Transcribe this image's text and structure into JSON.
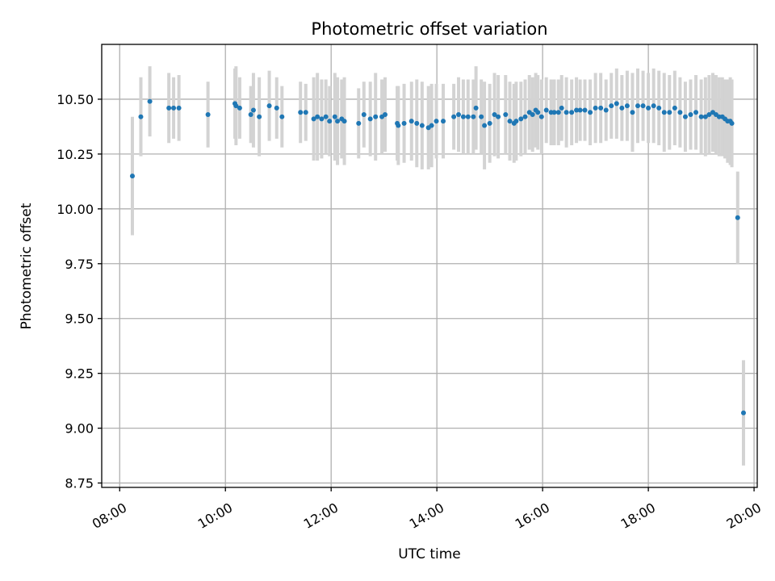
{
  "chart_data": {
    "type": "scatter",
    "title": "Photometric offset variation",
    "xlabel": "UTC time",
    "ylabel": "Photometric offset",
    "x_tick_labels": [
      "08:00",
      "10:00",
      "12:00",
      "14:00",
      "16:00",
      "18:00",
      "20:00"
    ],
    "x_tick_hours": [
      8,
      10,
      12,
      14,
      16,
      18,
      20
    ],
    "y_tick_labels": [
      "8.75",
      "9.00",
      "9.25",
      "9.50",
      "9.75",
      "10.00",
      "10.25",
      "10.50"
    ],
    "y_tick_values": [
      8.75,
      9.0,
      9.25,
      9.5,
      9.75,
      10.0,
      10.25,
      10.5
    ],
    "xlim_hours": [
      7.66,
      20.06
    ],
    "ylim": [
      8.73,
      10.75
    ],
    "grid": true,
    "colors": {
      "point": "#1f77b4",
      "errorbar": "#d3d3d3"
    },
    "series": [
      {
        "x_hours": [
          8.24,
          8.4,
          8.57,
          8.93,
          9.02,
          9.12,
          9.67,
          10.18,
          10.2,
          10.27,
          10.48,
          10.53,
          10.64,
          10.83,
          10.97,
          11.07,
          11.42,
          11.52,
          11.67,
          11.74,
          11.82,
          11.9,
          11.97,
          12.07,
          12.12,
          12.2,
          12.25,
          12.52,
          12.62,
          12.74,
          12.84,
          12.96,
          13.02,
          13.25,
          13.27,
          13.38,
          13.52,
          13.62,
          13.72,
          13.84,
          13.9,
          13.99,
          14.12,
          14.32,
          14.41,
          14.5,
          14.59,
          14.69,
          14.74,
          14.84,
          14.9,
          15.0,
          15.09,
          15.16,
          15.3,
          15.38,
          15.46,
          15.5,
          15.59,
          15.67,
          15.75,
          15.81,
          15.87,
          15.91,
          15.98,
          16.07,
          16.16,
          16.22,
          16.3,
          16.36,
          16.45,
          16.55,
          16.64,
          16.71,
          16.8,
          16.9,
          17.0,
          17.1,
          17.2,
          17.3,
          17.4,
          17.5,
          17.6,
          17.7,
          17.8,
          17.9,
          18.0,
          18.1,
          18.2,
          18.3,
          18.4,
          18.5,
          18.6,
          18.7,
          18.8,
          18.9,
          19.0,
          19.08,
          19.15,
          19.22,
          19.28,
          19.34,
          19.4,
          19.45,
          19.5,
          19.55,
          19.58,
          19.69,
          19.8
        ],
        "y": [
          10.15,
          10.42,
          10.49,
          10.46,
          10.46,
          10.46,
          10.43,
          10.48,
          10.47,
          10.46,
          10.43,
          10.45,
          10.42,
          10.47,
          10.46,
          10.42,
          10.44,
          10.44,
          10.41,
          10.42,
          10.41,
          10.42,
          10.4,
          10.42,
          10.4,
          10.41,
          10.4,
          10.39,
          10.43,
          10.41,
          10.42,
          10.42,
          10.43,
          10.39,
          10.38,
          10.39,
          10.4,
          10.39,
          10.38,
          10.37,
          10.38,
          10.4,
          10.4,
          10.42,
          10.43,
          10.42,
          10.42,
          10.42,
          10.46,
          10.42,
          10.38,
          10.39,
          10.43,
          10.42,
          10.43,
          10.4,
          10.39,
          10.4,
          10.41,
          10.42,
          10.44,
          10.43,
          10.45,
          10.44,
          10.42,
          10.45,
          10.44,
          10.44,
          10.44,
          10.46,
          10.44,
          10.44,
          10.45,
          10.45,
          10.45,
          10.44,
          10.46,
          10.46,
          10.45,
          10.47,
          10.48,
          10.46,
          10.47,
          10.44,
          10.47,
          10.47,
          10.46,
          10.47,
          10.46,
          10.44,
          10.44,
          10.46,
          10.44,
          10.42,
          10.43,
          10.44,
          10.42,
          10.42,
          10.43,
          10.44,
          10.43,
          10.42,
          10.42,
          10.41,
          10.4,
          10.4,
          10.39,
          9.96,
          9.07
        ],
        "err": [
          0.27,
          0.18,
          0.16,
          0.16,
          0.14,
          0.15,
          0.15,
          0.16,
          0.18,
          0.14,
          0.13,
          0.17,
          0.18,
          0.16,
          0.14,
          0.14,
          0.14,
          0.13,
          0.19,
          0.2,
          0.18,
          0.17,
          0.16,
          0.2,
          0.2,
          0.18,
          0.2,
          0.16,
          0.15,
          0.17,
          0.2,
          0.17,
          0.17,
          0.17,
          0.18,
          0.18,
          0.18,
          0.2,
          0.2,
          0.19,
          0.19,
          0.17,
          0.17,
          0.15,
          0.17,
          0.17,
          0.17,
          0.17,
          0.19,
          0.17,
          0.2,
          0.18,
          0.19,
          0.19,
          0.18,
          0.18,
          0.18,
          0.18,
          0.17,
          0.17,
          0.17,
          0.17,
          0.17,
          0.17,
          0.17,
          0.15,
          0.15,
          0.15,
          0.15,
          0.15,
          0.16,
          0.15,
          0.15,
          0.14,
          0.14,
          0.15,
          0.16,
          0.16,
          0.14,
          0.15,
          0.16,
          0.15,
          0.16,
          0.18,
          0.17,
          0.16,
          0.16,
          0.17,
          0.17,
          0.18,
          0.17,
          0.17,
          0.16,
          0.16,
          0.16,
          0.17,
          0.17,
          0.18,
          0.18,
          0.18,
          0.18,
          0.18,
          0.18,
          0.18,
          0.19,
          0.2,
          0.2,
          0.21,
          0.24
        ]
      }
    ]
  }
}
